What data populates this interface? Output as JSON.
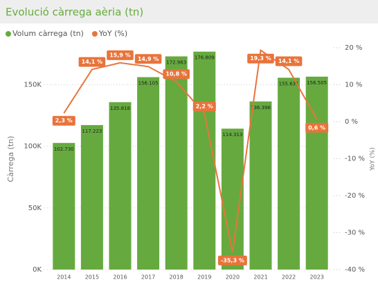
{
  "chart_data": {
    "type": "bar-line",
    "title": "Evolució càrrega aèria (tn)",
    "ylabel": "Càrrega (tn)",
    "y2label": "YoY (%)",
    "categories": [
      "2014",
      "2015",
      "2016",
      "2017",
      "2018",
      "2019",
      "2020",
      "2021",
      "2022",
      "2023"
    ],
    "series": [
      {
        "name": "Volum càrrega (tn)",
        "color": "#66aa3f",
        "type": "bar",
        "values": [
          102730,
          117223,
          135818,
          156105,
          172963,
          176809,
          114313,
          136396,
          155631,
          156505
        ],
        "value_labels": [
          "102.730",
          "117.223",
          "135.818",
          "156.105",
          "172.963",
          "176.809",
          "114.313",
          "136.396",
          "155.631",
          "156.505"
        ]
      },
      {
        "name": "YoY (%)",
        "color": "#e8743b",
        "type": "line",
        "axis": "y2",
        "values": [
          2.3,
          14.1,
          15.9,
          14.9,
          10.8,
          2.2,
          -35.3,
          19.3,
          14.1,
          0.6
        ],
        "value_labels": [
          "2,3 %",
          "14,1 %",
          "15,9 %",
          "14,9 %",
          "10,8 %",
          "2,2 %",
          "-35,3 %",
          "19,3 %",
          "14,1 %",
          "0,6 %"
        ]
      }
    ],
    "ylim": [
      0,
      180000
    ],
    "yticks": [
      {
        "value": 0,
        "label": "0K"
      },
      {
        "value": 50000,
        "label": "50K"
      },
      {
        "value": 100000,
        "label": "100K"
      },
      {
        "value": 150000,
        "label": "150K"
      }
    ],
    "y2lim": [
      -40,
      20
    ],
    "y2ticks": [
      {
        "value": 20,
        "label": "20 %"
      },
      {
        "value": 10,
        "label": "10 %"
      },
      {
        "value": 0,
        "label": "0 %"
      },
      {
        "value": -10,
        "label": "-10 %"
      },
      {
        "value": -20,
        "label": "-20 %"
      },
      {
        "value": -30,
        "label": "-30 %"
      },
      {
        "value": -40,
        "label": "-40 %"
      }
    ],
    "grid": true
  }
}
